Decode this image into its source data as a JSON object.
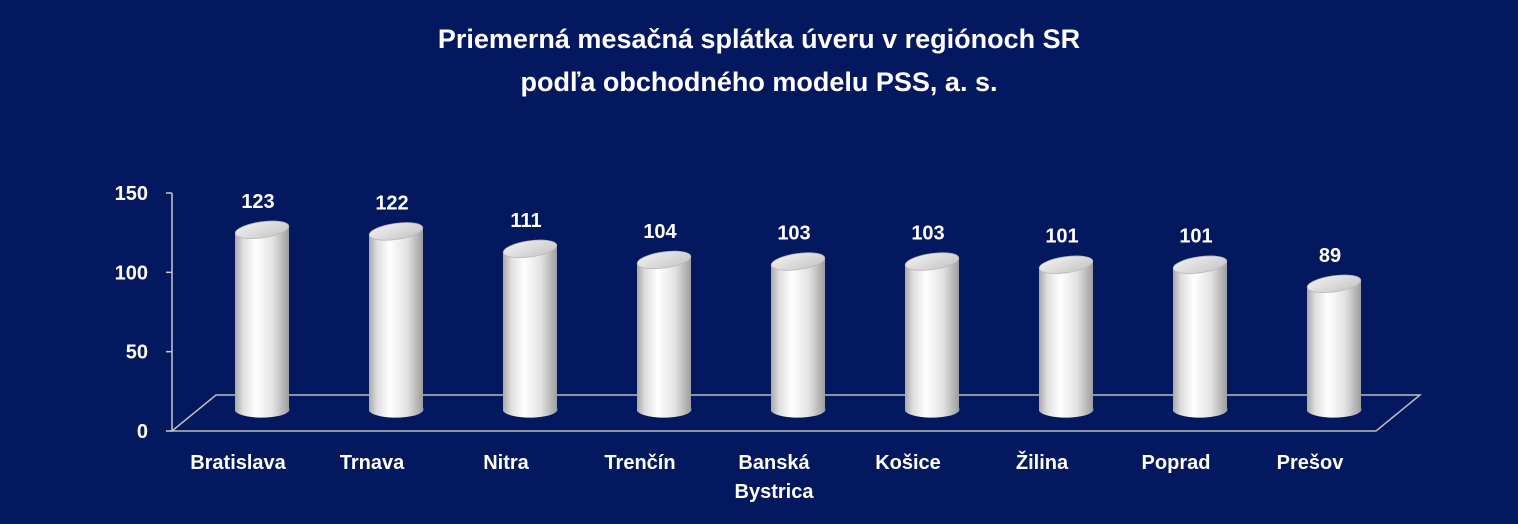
{
  "chart_data": {
    "type": "bar",
    "style": "3d-cylinder",
    "title": "Priemerná mesačná splátka úveru v regiónoch SR",
    "subtitle": "podľa obchodného modelu PSS, a. s.",
    "xlabel": "",
    "ylabel": "",
    "ylim": [
      0,
      150
    ],
    "yticks": [
      "0",
      "50",
      "100",
      "150"
    ],
    "grid": false,
    "legend": "none",
    "categories": [
      [
        "Bratislava"
      ],
      [
        "Trnava"
      ],
      [
        "Nitra"
      ],
      [
        "Trenčín"
      ],
      [
        "Banská",
        "Bystrica"
      ],
      [
        "Košice"
      ],
      [
        "Žilina"
      ],
      [
        "Poprad"
      ],
      [
        "Prešov"
      ]
    ],
    "values": [
      123,
      122,
      111,
      104,
      103,
      103,
      101,
      101,
      89
    ],
    "value_labels": [
      "123",
      "122",
      "111",
      "104",
      "103",
      "103",
      "101",
      "101",
      "89"
    ]
  },
  "colors": {
    "background": "#03185e",
    "text": "#ffffff",
    "axis": "#c9c9c9",
    "bar_light": "#ffffff",
    "bar_mid": "#dcdcdc",
    "bar_dark": "#9a9a9a"
  }
}
